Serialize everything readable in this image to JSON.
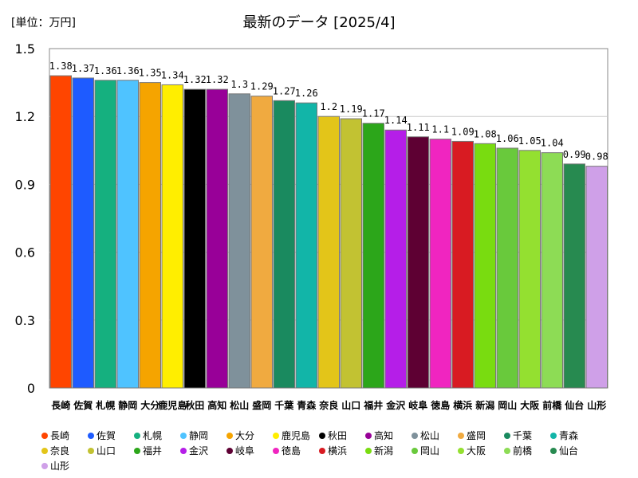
{
  "chart_data": {
    "type": "bar",
    "title": "最新のデータ [2025/4]",
    "unit_label": "[単位：万円]",
    "xlabel": "",
    "ylabel": "",
    "ylim": [
      0,
      1.5
    ],
    "yticks": [
      "0",
      "0.3",
      "0.6",
      "0.9",
      "1.2",
      "1.5"
    ],
    "ytick_values": [
      0,
      0.3,
      0.6,
      0.9,
      1.2,
      1.5
    ],
    "grid": true,
    "legend_position": "bottom",
    "categories": [
      "長崎",
      "佐賀",
      "札幌",
      "静岡",
      "大分",
      "鹿児島",
      "秋田",
      "高知",
      "松山",
      "盛岡",
      "千葉",
      "青森",
      "奈良",
      "山口",
      "福井",
      "金沢",
      "岐阜",
      "徳島",
      "横浜",
      "新潟",
      "岡山",
      "大阪",
      "前橋",
      "仙台",
      "山形"
    ],
    "values": [
      1.38,
      1.37,
      1.36,
      1.36,
      1.35,
      1.34,
      1.32,
      1.32,
      1.3,
      1.29,
      1.27,
      1.26,
      1.2,
      1.19,
      1.17,
      1.14,
      1.11,
      1.1,
      1.09,
      1.08,
      1.06,
      1.05,
      1.04,
      0.99,
      0.98
    ],
    "value_labels": [
      "1.38",
      "1.37",
      "1.36",
      "1.36",
      "1.35",
      "1.34",
      "1.32",
      "1.32",
      "1.3",
      "1.29",
      "1.27",
      "1.26",
      "1.2",
      "1.19",
      "1.17",
      "1.14",
      "1.11",
      "1.1",
      "1.09",
      "1.08",
      "1.06",
      "1.05",
      "1.04",
      "0.99",
      "0.98"
    ],
    "colors": [
      "#ff4500",
      "#1e5bff",
      "#15b07f",
      "#4fc3ff",
      "#f5a400",
      "#ffee00",
      "#000000",
      "#980098",
      "#7f919b",
      "#f0aa40",
      "#1a8a5f",
      "#12b5a8",
      "#e3c519",
      "#c2c232",
      "#2ca61a",
      "#b51ee8",
      "#5e0033",
      "#f025c0",
      "#d81b22",
      "#79dc10",
      "#69c93c",
      "#94e030",
      "#8ddc55",
      "#278a50",
      "#cfa0e8"
    ]
  }
}
